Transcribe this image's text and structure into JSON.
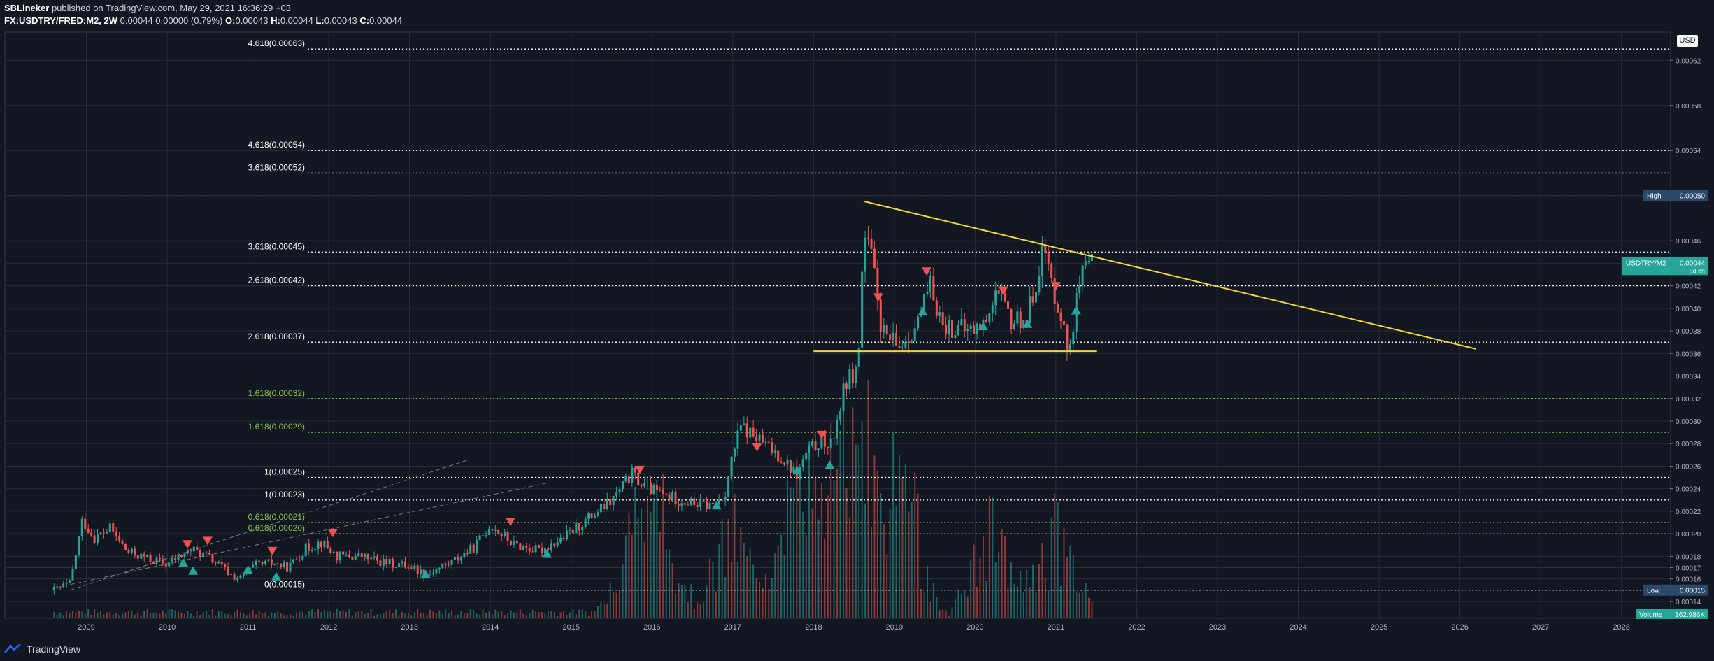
{
  "header": {
    "author": "SBLineker",
    "published": "published on TradingView.com, May 29, 2021 16:36:29 +03",
    "symbol": "FX:USDTRY/FRED:M2, 2W",
    "change": "0.00044 0.00000 (0.79%)",
    "o_label": "O:",
    "o_value": "0.00043",
    "h_label": "H:",
    "h_value": "0.00044",
    "l_label": "L:",
    "l_value": "0.00043",
    "c_label": "C:",
    "c_value": "0.00044"
  },
  "footer": {
    "brand": "TradingView"
  },
  "currency_button": "USD",
  "colors": {
    "background": "#131722",
    "grid": "#2a2e39",
    "up": "#26a69a",
    "down": "#ef5350",
    "trend": "#f5d638",
    "fib_white": "#ffffff",
    "fib_green": "#8bc34a"
  },
  "chart_data": {
    "type": "candlestick",
    "title": "FX:USDTRY/FRED:M2, 2W",
    "ylim": [
      0.000125,
      0.000645
    ],
    "xlim": [
      2008.0,
      2028.6
    ],
    "x_ticks": [
      "2009",
      "2010",
      "2011",
      "2012",
      "2013",
      "2014",
      "2015",
      "2016",
      "2017",
      "2018",
      "2019",
      "2020",
      "2021",
      "2022",
      "2023",
      "2024",
      "2025",
      "2026",
      "2027",
      "2028"
    ],
    "y_ticks": [
      "0.00062",
      "0.00058",
      "0.00054",
      "0.00050",
      "0.00046",
      "0.00044",
      "0.00042",
      "0.00040",
      "0.00038",
      "0.00036",
      "0.00034",
      "0.00032",
      "0.00030",
      "0.00028",
      "0.00026",
      "0.00024",
      "0.00022",
      "0.00020",
      "0.00018",
      "0.00017",
      "0.00016",
      "0.00015",
      "0.00014"
    ],
    "price_path": [
      [
        2008.6,
        0.00015
      ],
      [
        2008.8,
        0.000156
      ],
      [
        2008.95,
        0.000212
      ],
      [
        2009.1,
        0.000196
      ],
      [
        2009.3,
        0.000205
      ],
      [
        2009.5,
        0.000184
      ],
      [
        2009.8,
        0.000177
      ],
      [
        2010.0,
        0.000173
      ],
      [
        2010.3,
        0.000186
      ],
      [
        2010.5,
        0.00018
      ],
      [
        2010.8,
        0.000163
      ],
      [
        2010.9,
        0.00016
      ],
      [
        2011.1,
        0.000172
      ],
      [
        2011.3,
        0.000174
      ],
      [
        2011.5,
        0.00017
      ],
      [
        2011.7,
        0.000186
      ],
      [
        2011.9,
        0.000193
      ],
      [
        2012.1,
        0.00018
      ],
      [
        2012.4,
        0.00018
      ],
      [
        2012.7,
        0.000174
      ],
      [
        2013.0,
        0.000172
      ],
      [
        2013.2,
        0.000164
      ],
      [
        2013.5,
        0.000174
      ],
      [
        2013.8,
        0.000188
      ],
      [
        2014.0,
        0.000208
      ],
      [
        2014.3,
        0.00019
      ],
      [
        2014.6,
        0.000185
      ],
      [
        2014.9,
        0.000196
      ],
      [
        2015.2,
        0.000213
      ],
      [
        2015.5,
        0.000229
      ],
      [
        2015.75,
        0.000253
      ],
      [
        2015.9,
        0.000242
      ],
      [
        2016.2,
        0.000233
      ],
      [
        2016.5,
        0.000227
      ],
      [
        2016.75,
        0.000225
      ],
      [
        2016.9,
        0.000235
      ],
      [
        2017.0,
        0.00027
      ],
      [
        2017.1,
        0.000295
      ],
      [
        2017.4,
        0.000279
      ],
      [
        2017.6,
        0.000268
      ],
      [
        2017.8,
        0.000252
      ],
      [
        2017.9,
        0.00027
      ],
      [
        2018.1,
        0.000284
      ],
      [
        2018.2,
        0.000273
      ],
      [
        2018.4,
        0.000335
      ],
      [
        2018.55,
        0.000347
      ],
      [
        2018.62,
        0.000465
      ],
      [
        2018.72,
        0.000445
      ],
      [
        2018.85,
        0.000378
      ],
      [
        2019.05,
        0.000365
      ],
      [
        2019.3,
        0.000388
      ],
      [
        2019.45,
        0.00042
      ],
      [
        2019.6,
        0.000385
      ],
      [
        2019.9,
        0.00038
      ],
      [
        2020.1,
        0.000385
      ],
      [
        2020.25,
        0.000415
      ],
      [
        2020.45,
        0.000388
      ],
      [
        2020.65,
        0.000393
      ],
      [
        2020.85,
        0.000455
      ],
      [
        2020.95,
        0.00042
      ],
      [
        2021.05,
        0.0004
      ],
      [
        2021.15,
        0.00036
      ],
      [
        2021.3,
        0.000425
      ],
      [
        2021.45,
        0.00044
      ]
    ],
    "volume_peak_years": [
      2015.8,
      2016.1,
      2017.0,
      2017.7,
      2018.0,
      2018.35,
      2018.65,
      2019.1,
      2020.2,
      2021.0
    ],
    "fib_levels_white": [
      {
        "label": "4.618(0.00063)",
        "value": 0.00063
      },
      {
        "label": "4.618(0.00054)",
        "value": 0.00054
      },
      {
        "label": "3.618(0.00052)",
        "value": 0.00052
      },
      {
        "label": "3.618(0.00045)",
        "value": 0.00045
      },
      {
        "label": "2.618(0.00042)",
        "value": 0.00042
      },
      {
        "label": "2.618(0.00037)",
        "value": 0.00037
      },
      {
        "label": "1(0.00025)",
        "value": 0.00025
      },
      {
        "label": "1(0.00023)",
        "value": 0.00023
      },
      {
        "label": "0(0.00015)",
        "value": 0.00015
      }
    ],
    "fib_levels_green": [
      {
        "label": "1.618(0.00032)",
        "value": 0.00032
      },
      {
        "label": "1.618(0.00029)",
        "value": 0.00029
      },
      {
        "label": "0.618(0.00021)",
        "value": 0.00021
      },
      {
        "label": "0.618(0.00020)",
        "value": 0.0002
      }
    ],
    "trendline_upper": [
      [
        2018.62,
        0.000495
      ],
      [
        2026.2,
        0.000364
      ]
    ],
    "trendline_support": [
      [
        2018.0,
        0.000362
      ],
      [
        2021.5,
        0.000362
      ]
    ],
    "dashed_channel": [
      [
        [
          2008.8,
          0.00015
        ],
        [
          2013.7,
          0.000265
        ]
      ],
      [
        [
          2008.8,
          0.000155
        ],
        [
          2014.7,
          0.000245
        ]
      ]
    ],
    "sell_signals": [
      [
        2010.25,
        0.00019
      ],
      [
        2010.5,
        0.000193
      ],
      [
        2011.3,
        0.000184
      ],
      [
        2012.05,
        0.0002
      ],
      [
        2014.25,
        0.00021
      ],
      [
        2015.85,
        0.000256
      ],
      [
        2017.3,
        0.000276
      ],
      [
        2018.1,
        0.000287
      ],
      [
        2018.8,
        0.000409
      ],
      [
        2019.4,
        0.000432
      ],
      [
        2020.35,
        0.000415
      ],
      [
        2021.0,
        0.000419
      ]
    ],
    "buy_signals": [
      [
        2010.2,
        0.000175
      ],
      [
        2010.32,
        0.000168
      ],
      [
        2011.0,
        0.000169
      ],
      [
        2011.35,
        0.000163
      ],
      [
        2013.2,
        0.000165
      ],
      [
        2014.7,
        0.000183
      ],
      [
        2016.8,
        0.000226
      ],
      [
        2017.8,
        0.000257
      ],
      [
        2018.2,
        0.000262
      ],
      [
        2019.35,
        0.000398
      ],
      [
        2020.1,
        0.000385
      ],
      [
        2020.65,
        0.000387
      ],
      [
        2021.25,
        0.000399
      ]
    ],
    "markers": {
      "high": {
        "label": "High",
        "value": "0.00050",
        "price": 0.0005
      },
      "last": {
        "label": "USDTRY/M2",
        "value": "0.00044",
        "countdown": "6d 8h",
        "price": 0.00044
      },
      "low": {
        "label": "Low",
        "value": "0.00015",
        "price": 0.00015
      },
      "volume": {
        "label": "Volume",
        "value": "162.986K"
      }
    }
  }
}
